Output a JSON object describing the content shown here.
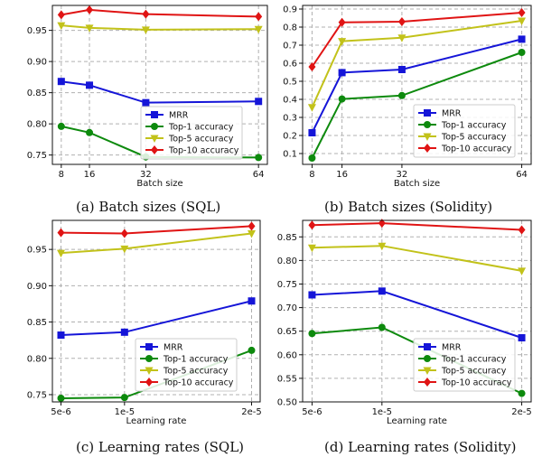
{
  "captions": [
    "(a)  Batch sizes (SQL)",
    "(b)  Batch sizes (Solidity)",
    "(c)  Learning rates (SQL)",
    "(d)  Learning rates (Solidity)"
  ],
  "colors": {
    "MRR": "#1515d8",
    "Top-1 accuracy": "#0d8a0d",
    "Top-5 accuracy": "#c2c21a",
    "Top-10 accuracy": "#e01414"
  },
  "markers": {
    "MRR": "square",
    "Top-1 accuracy": "circle",
    "Top-5 accuracy": "triangle-down",
    "Top-10 accuracy": "diamond"
  },
  "chart_data": [
    {
      "id": "a",
      "type": "line",
      "xlabel": "Batch size",
      "x_labels": [
        "8",
        "16",
        "32",
        "64"
      ],
      "x": [
        8,
        16,
        32,
        64
      ],
      "ylim": [
        0.735,
        0.99
      ],
      "yticks": [
        0.75,
        0.8,
        0.85,
        0.9,
        0.95
      ],
      "ytick_labels": [
        "0.75",
        "0.80",
        "0.85",
        "0.90",
        "0.95"
      ],
      "grid": true,
      "legend_position": "lower-right",
      "series": [
        {
          "name": "MRR",
          "values": [
            0.868,
            0.862,
            0.834,
            0.836
          ]
        },
        {
          "name": "Top-1 accuracy",
          "values": [
            0.796,
            0.786,
            0.747,
            0.746
          ]
        },
        {
          "name": "Top-5 accuracy",
          "values": [
            0.958,
            0.954,
            0.951,
            0.952
          ]
        },
        {
          "name": "Top-10 accuracy",
          "values": [
            0.975,
            0.983,
            0.976,
            0.972
          ]
        }
      ]
    },
    {
      "id": "b",
      "type": "line",
      "xlabel": "Batch size",
      "x_labels": [
        "8",
        "16",
        "32",
        "64"
      ],
      "x": [
        8,
        16,
        32,
        64
      ],
      "ylim": [
        0.04,
        0.92
      ],
      "yticks": [
        0.1,
        0.2,
        0.3,
        0.4,
        0.5,
        0.6,
        0.7,
        0.8,
        0.9
      ],
      "ytick_labels": [
        "0.1",
        "0.2",
        "0.3",
        "0.4",
        "0.5",
        "0.6",
        "0.7",
        "0.8",
        "0.9"
      ],
      "grid": true,
      "legend_position": "lower-right",
      "series": [
        {
          "name": "MRR",
          "values": [
            0.215,
            0.548,
            0.565,
            0.733
          ]
        },
        {
          "name": "Top-1 accuracy",
          "values": [
            0.075,
            0.402,
            0.421,
            0.66
          ]
        },
        {
          "name": "Top-5 accuracy",
          "values": [
            0.356,
            0.722,
            0.741,
            0.835
          ]
        },
        {
          "name": "Top-10 accuracy",
          "values": [
            0.58,
            0.826,
            0.83,
            0.88
          ]
        }
      ]
    },
    {
      "id": "c",
      "type": "line",
      "xlabel": "Learning rate",
      "x_labels": [
        "5e-6",
        "1e-5",
        "2e-5"
      ],
      "x": [
        1,
        2,
        4
      ],
      "ylim": [
        0.74,
        0.99
      ],
      "yticks": [
        0.75,
        0.8,
        0.85,
        0.9,
        0.95
      ],
      "ytick_labels": [
        "0.75",
        "0.80",
        "0.85",
        "0.90",
        "0.95"
      ],
      "grid": true,
      "legend_position": "lower-right",
      "series": [
        {
          "name": "MRR",
          "values": [
            0.832,
            0.836,
            0.879
          ]
        },
        {
          "name": "Top-1 accuracy",
          "values": [
            0.745,
            0.746,
            0.811
          ]
        },
        {
          "name": "Top-5 accuracy",
          "values": [
            0.945,
            0.951,
            0.972
          ]
        },
        {
          "name": "Top-10 accuracy",
          "values": [
            0.973,
            0.972,
            0.982
          ]
        }
      ]
    },
    {
      "id": "d",
      "type": "line",
      "xlabel": "Learning rate",
      "x_labels": [
        "5e-6",
        "1e-5",
        "2e-5"
      ],
      "x": [
        1,
        2,
        4
      ],
      "ylim": [
        0.5,
        0.885
      ],
      "yticks": [
        0.5,
        0.55,
        0.6,
        0.65,
        0.7,
        0.75,
        0.8,
        0.85
      ],
      "ytick_labels": [
        "0.50",
        "0.55",
        "0.60",
        "0.65",
        "0.70",
        "0.75",
        "0.80",
        "0.85"
      ],
      "grid": true,
      "legend_position": "lower-right",
      "series": [
        {
          "name": "MRR",
          "values": [
            0.727,
            0.735,
            0.636
          ]
        },
        {
          "name": "Top-1 accuracy",
          "values": [
            0.645,
            0.658,
            0.518
          ]
        },
        {
          "name": "Top-5 accuracy",
          "values": [
            0.827,
            0.831,
            0.778
          ]
        },
        {
          "name": "Top-10 accuracy",
          "values": [
            0.875,
            0.879,
            0.865
          ]
        }
      ]
    }
  ]
}
